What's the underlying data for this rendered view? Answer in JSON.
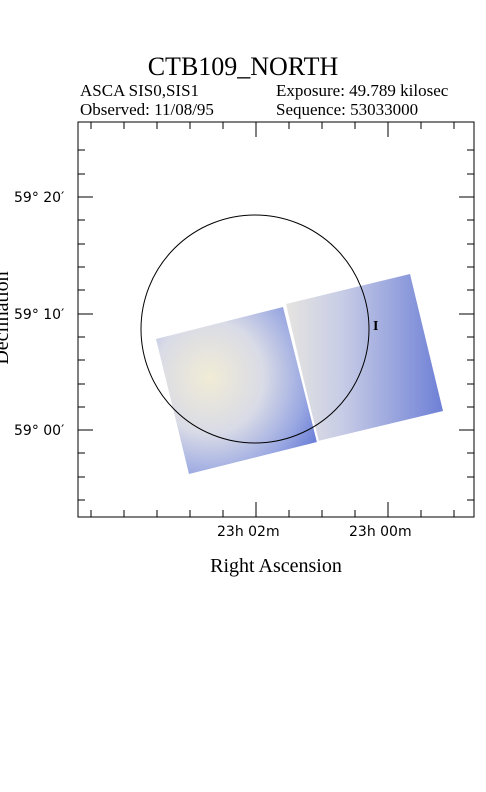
{
  "header": {
    "title": "CTB109_NORTH",
    "instrument": "ASCA SIS0,SIS1",
    "exposure": "Exposure: 49.789 kilosec",
    "observed": "Observed: 11/08/95",
    "sequence": "Sequence: 53033000"
  },
  "axes": {
    "xlabel": "Right Ascension",
    "ylabel": "Declination",
    "dec_ticks": [
      "59° 20′",
      "59° 10′",
      "59° 00′"
    ],
    "ra_ticks": [
      "23h 02m",
      "23h 00m"
    ]
  },
  "marker_label": "I",
  "colors": {
    "frame": "#000000",
    "image_edge": "#6f82d8",
    "image_center": "#f1ecd6"
  }
}
